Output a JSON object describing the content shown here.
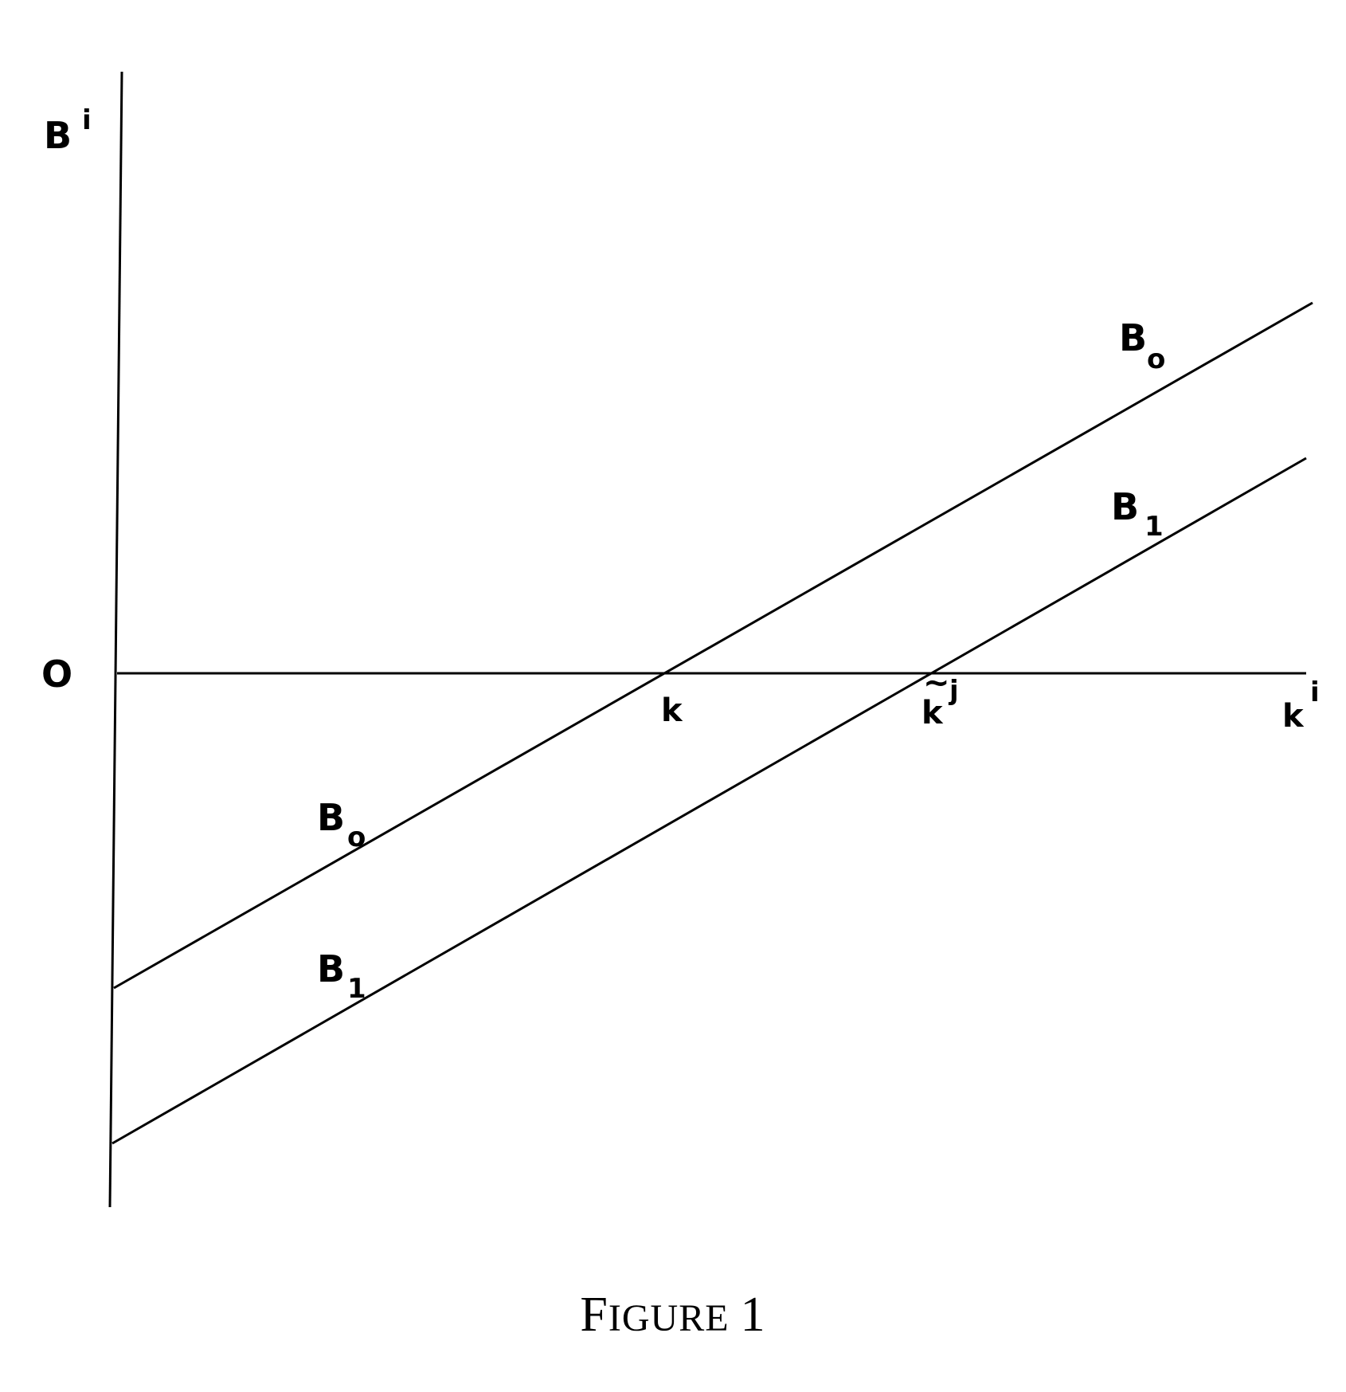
{
  "figure": {
    "y_axis_label": {
      "base": "B",
      "sup": "i"
    },
    "x_axis_label": {
      "base": "k",
      "sup": "i"
    },
    "origin_label": "O",
    "point_k_label": "k",
    "point_kj_label": {
      "base": "k",
      "accent": "~",
      "sup": "j"
    },
    "line_b0_label": {
      "base": "B",
      "sub": "o"
    },
    "line_b1_label": {
      "base": "B",
      "sub": "1"
    },
    "caption": {
      "first_letter": "F",
      "rest": "IGURE",
      "number": "1"
    }
  }
}
